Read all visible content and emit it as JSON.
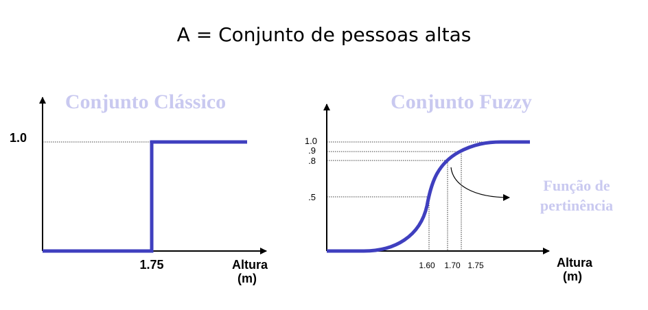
{
  "slide": {
    "title": "A = Conjunto de pessoas altas",
    "line_color": "#3f3fbf",
    "heading_color": "#c9c9f0",
    "axis_color": "#000000"
  },
  "classic": {
    "heading": "Conjunto Clássico",
    "y_tick": "1.0",
    "x_tick": "1.75",
    "x_label_1": "Altura",
    "x_label_2": "(m)"
  },
  "fuzzy": {
    "heading": "Conjunto Fuzzy",
    "y_ticks": [
      "1.0",
      ".9",
      ".8",
      ".5"
    ],
    "x_ticks": [
      "1.60",
      "1.70",
      "1.75"
    ],
    "x_label_1": "Altura",
    "x_label_2": "(m)",
    "annotation_1": "Função de",
    "annotation_2": "pertinência"
  }
}
